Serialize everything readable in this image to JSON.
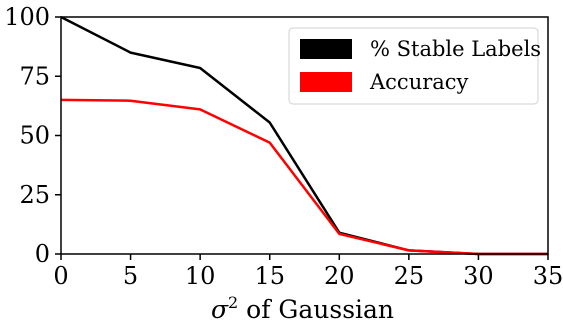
{
  "chart_data": {
    "type": "line",
    "title": "",
    "xlabel_prefix": "σ",
    "xlabel_sup": "2",
    "xlabel_suffix": " of Gaussian",
    "ylabel": "",
    "x": [
      0,
      5,
      10,
      15,
      20,
      25,
      30,
      35
    ],
    "xlim": [
      0,
      35
    ],
    "ylim": [
      0,
      100
    ],
    "xticks": [
      "0",
      "5",
      "10",
      "15",
      "20",
      "25",
      "30",
      "35"
    ],
    "yticks": [
      "0",
      "25",
      "50",
      "75",
      "100"
    ],
    "grid": false,
    "legend_position": "top-right",
    "series": [
      {
        "name": "% Stable Labels",
        "color": "#000000",
        "values": [
          100,
          85,
          78.5,
          55.5,
          9,
          1.5,
          0,
          0
        ]
      },
      {
        "name": "Accuracy",
        "color": "#ff0000",
        "values": [
          65,
          64.7,
          61,
          47,
          8.5,
          1.5,
          0,
          0
        ]
      }
    ]
  }
}
